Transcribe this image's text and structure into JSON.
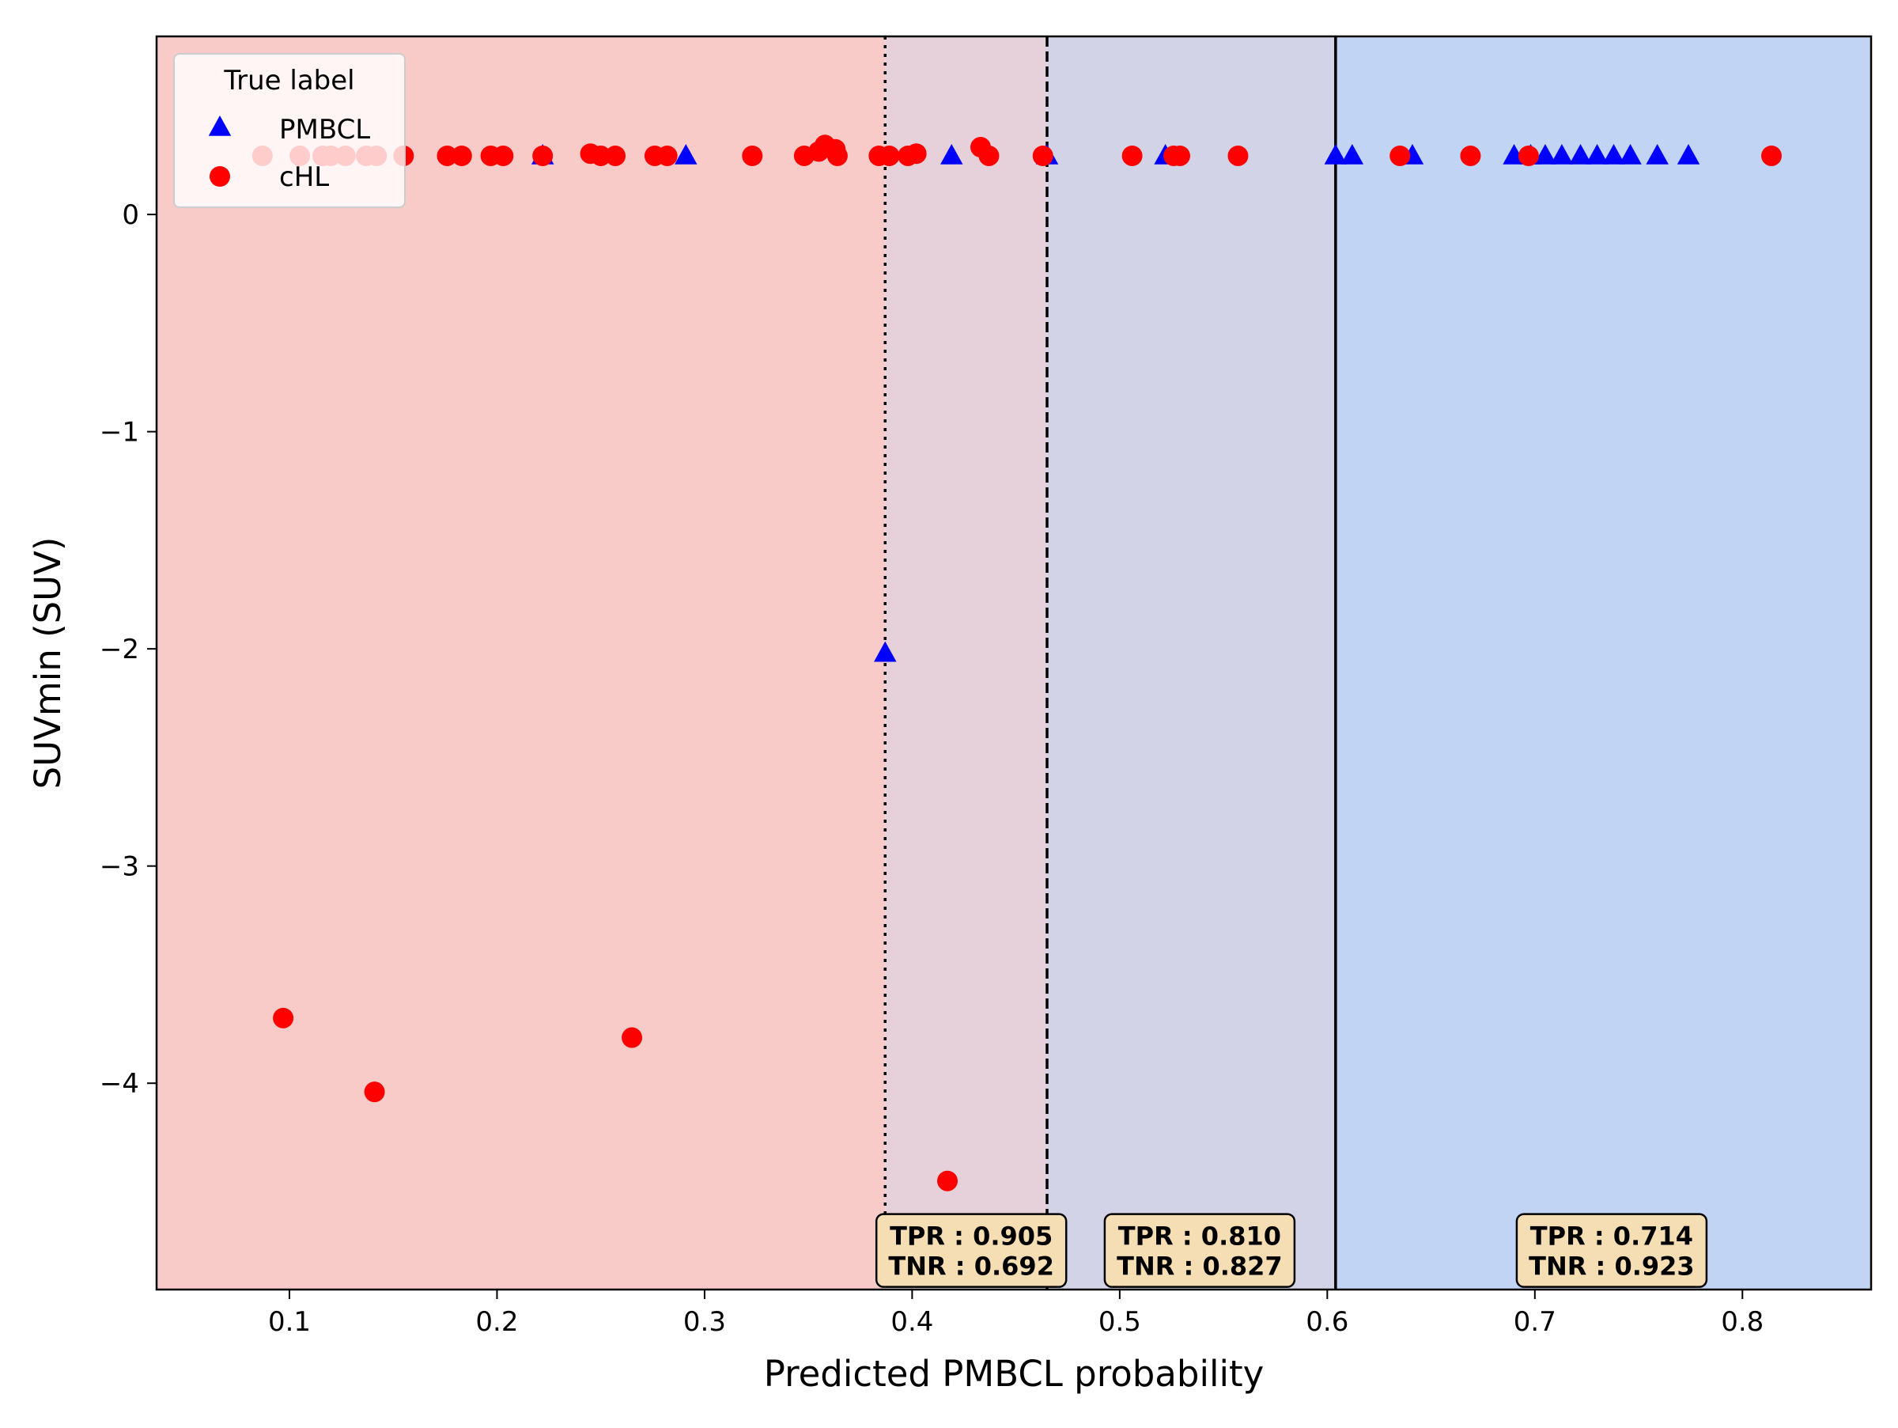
{
  "chart_data": {
    "type": "scatter",
    "xlabel": "Predicted PMBCL probability",
    "ylabel": "SUVmin (SUV)",
    "xlim": [
      0.036,
      0.862
    ],
    "ylim": [
      -4.95,
      0.82
    ],
    "xticks": [
      0.1,
      0.2,
      0.3,
      0.4,
      0.5,
      0.6,
      0.7,
      0.8
    ],
    "xtick_labels": [
      "0.1",
      "0.2",
      "0.3",
      "0.4",
      "0.5",
      "0.6",
      "0.7",
      "0.8"
    ],
    "yticks": [
      0,
      -1,
      -2,
      -3,
      -4
    ],
    "ytick_labels": [
      "0",
      "−1",
      "−2",
      "−3",
      "−4"
    ],
    "grid": false,
    "legend": {
      "title": "True label",
      "placement": "top-left",
      "entries": [
        {
          "label": "PMBCL",
          "marker": "triangle",
          "color": "#0000ff"
        },
        {
          "label": "cHL",
          "marker": "circle",
          "color": "#ff0000"
        }
      ]
    },
    "regions": [
      {
        "x0": 0.036,
        "x1": 0.387,
        "color": "#f9cbc8"
      },
      {
        "x0": 0.387,
        "x1": 0.465,
        "color": "#e6d0da"
      },
      {
        "x0": 0.465,
        "x1": 0.604,
        "color": "#d3d3e8"
      },
      {
        "x0": 0.604,
        "x1": 0.862,
        "color": "#c2d4f4"
      }
    ],
    "thresholds": [
      {
        "x": 0.387,
        "style": "dotted",
        "annotation": {
          "x": 0.4285,
          "tpr": "TPR : 0.905",
          "tnr": "TNR : 0.692"
        }
      },
      {
        "x": 0.465,
        "style": "dashed",
        "annotation": {
          "x": 0.5385,
          "tpr": "TPR : 0.810",
          "tnr": "TNR : 0.827"
        }
      },
      {
        "x": 0.604,
        "style": "solid",
        "annotation": {
          "x": 0.737,
          "tpr": "TPR : 0.714",
          "tnr": "TNR : 0.923"
        }
      }
    ],
    "annotation_y": -4.77,
    "annotation_style": {
      "fill": "#f5deb3",
      "border": "#000000"
    },
    "series": [
      {
        "name": "PMBCL",
        "marker": "triangle",
        "color": "#0000ff",
        "points": [
          [
            0.222,
            0.27
          ],
          [
            0.291,
            0.27
          ],
          [
            0.387,
            -2.02
          ],
          [
            0.419,
            0.27
          ],
          [
            0.465,
            0.27
          ],
          [
            0.522,
            0.27
          ],
          [
            0.604,
            0.27
          ],
          [
            0.612,
            0.27
          ],
          [
            0.641,
            0.27
          ],
          [
            0.69,
            0.27
          ],
          [
            0.698,
            0.27
          ],
          [
            0.705,
            0.27
          ],
          [
            0.713,
            0.27
          ],
          [
            0.722,
            0.27
          ],
          [
            0.73,
            0.27
          ],
          [
            0.738,
            0.27
          ],
          [
            0.746,
            0.27
          ],
          [
            0.759,
            0.27
          ],
          [
            0.774,
            0.27
          ]
        ]
      },
      {
        "name": "cHL",
        "marker": "circle",
        "color": "#ff0000",
        "points": [
          [
            0.087,
            0.27
          ],
          [
            0.105,
            0.27
          ],
          [
            0.116,
            0.27
          ],
          [
            0.12,
            0.27
          ],
          [
            0.127,
            0.27
          ],
          [
            0.137,
            0.27
          ],
          [
            0.142,
            0.27
          ],
          [
            0.155,
            0.27
          ],
          [
            0.176,
            0.27
          ],
          [
            0.183,
            0.27
          ],
          [
            0.197,
            0.27
          ],
          [
            0.203,
            0.27
          ],
          [
            0.222,
            0.27
          ],
          [
            0.245,
            0.28
          ],
          [
            0.25,
            0.27
          ],
          [
            0.257,
            0.27
          ],
          [
            0.276,
            0.27
          ],
          [
            0.282,
            0.27
          ],
          [
            0.323,
            0.27
          ],
          [
            0.348,
            0.27
          ],
          [
            0.355,
            0.29
          ],
          [
            0.358,
            0.32
          ],
          [
            0.363,
            0.3
          ],
          [
            0.364,
            0.27
          ],
          [
            0.384,
            0.27
          ],
          [
            0.389,
            0.27
          ],
          [
            0.398,
            0.27
          ],
          [
            0.402,
            0.28
          ],
          [
            0.433,
            0.31
          ],
          [
            0.437,
            0.27
          ],
          [
            0.463,
            0.27
          ],
          [
            0.506,
            0.27
          ],
          [
            0.526,
            0.27
          ],
          [
            0.529,
            0.27
          ],
          [
            0.557,
            0.27
          ],
          [
            0.635,
            0.27
          ],
          [
            0.669,
            0.27
          ],
          [
            0.697,
            0.27
          ],
          [
            0.814,
            0.27
          ],
          [
            0.097,
            -3.7
          ],
          [
            0.141,
            -4.04
          ],
          [
            0.265,
            -3.79
          ],
          [
            0.417,
            -4.45
          ]
        ]
      }
    ]
  }
}
